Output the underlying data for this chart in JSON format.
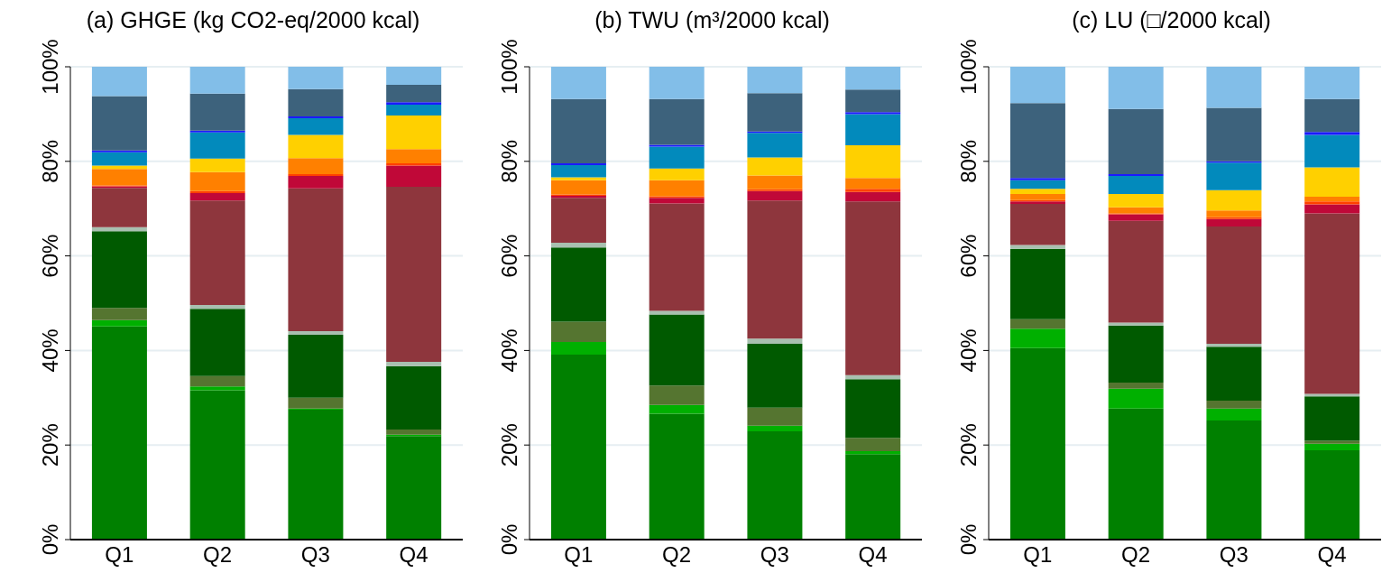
{
  "chart_data": [
    {
      "type": "bar",
      "title": "(a) GHGE (kg CO2-eq/2000 kcal)",
      "categories": [
        "Q1",
        "Q2",
        "Q3",
        "Q4"
      ],
      "stacked": true,
      "grid": "y",
      "ylim": [
        0,
        100
      ],
      "yticks": [
        {
          "value": 0,
          "label": "0%"
        },
        {
          "value": 20,
          "label": "20%"
        },
        {
          "value": 40,
          "label": "40%"
        },
        {
          "value": 60,
          "label": "60%"
        },
        {
          "value": 80,
          "label": "80%"
        },
        {
          "value": 100,
          "label": "100%"
        }
      ],
      "series": [
        {
          "color": "#008000",
          "values": [
            45.1,
            31.6,
            27.5,
            21.9
          ]
        },
        {
          "color": "#00b000",
          "values": [
            1.3,
            0.8,
            0.2,
            0.3
          ]
        },
        {
          "color": "#557530",
          "values": [
            2.6,
            2.2,
            2.3,
            1.1
          ]
        },
        {
          "color": "#005a00",
          "values": [
            16.2,
            14.2,
            13.3,
            13.4
          ]
        },
        {
          "color": "#a8c0b0",
          "values": [
            0.9,
            0.8,
            0.8,
            0.9
          ]
        },
        {
          "color": "#8e363d",
          "values": [
            8.3,
            22.1,
            30.2,
            37.0
          ]
        },
        {
          "color": "#c00838",
          "values": [
            0.3,
            1.6,
            2.6,
            4.5
          ]
        },
        {
          "color": "#ff4000",
          "values": [
            0.2,
            0.4,
            0.4,
            0.5
          ]
        },
        {
          "color": "#ff8000",
          "values": [
            3.5,
            4.0,
            3.4,
            3.0
          ]
        },
        {
          "color": "#ffd000",
          "values": [
            0.7,
            2.9,
            4.9,
            7.1
          ]
        },
        {
          "color": "#028abc",
          "values": [
            2.8,
            5.5,
            3.5,
            2.3
          ]
        },
        {
          "color": "#1a1aff",
          "values": [
            0.4,
            0.4,
            0.4,
            0.5
          ]
        },
        {
          "color": "#3d627c",
          "values": [
            11.5,
            7.8,
            5.8,
            3.7
          ]
        },
        {
          "color": "#82bee8",
          "values": [
            6.2,
            5.7,
            4.7,
            3.8
          ]
        }
      ]
    },
    {
      "type": "bar",
      "title": "(b) TWU (m³/2000 kcal)",
      "categories": [
        "Q1",
        "Q2",
        "Q3",
        "Q4"
      ],
      "stacked": true,
      "grid": "y",
      "ylim": [
        0,
        100
      ],
      "yticks": [
        {
          "value": 0,
          "label": "0%"
        },
        {
          "value": 20,
          "label": "20%"
        },
        {
          "value": 40,
          "label": "40%"
        },
        {
          "value": 60,
          "label": "60%"
        },
        {
          "value": 80,
          "label": "80%"
        },
        {
          "value": 100,
          "label": "100%"
        }
      ],
      "series": [
        {
          "color": "#008000",
          "values": [
            39.1,
            26.6,
            22.9,
            18.1
          ]
        },
        {
          "color": "#00b000",
          "values": [
            2.7,
            1.9,
            1.2,
            0.6
          ]
        },
        {
          "color": "#557530",
          "values": [
            4.3,
            4.1,
            3.8,
            2.8
          ]
        },
        {
          "color": "#005a00",
          "values": [
            15.7,
            15.0,
            13.5,
            12.4
          ]
        },
        {
          "color": "#a8c0b0",
          "values": [
            1.0,
            0.8,
            1.1,
            0.9
          ]
        },
        {
          "color": "#8e363d",
          "values": [
            9.5,
            22.7,
            29.2,
            36.7
          ]
        },
        {
          "color": "#c00838",
          "values": [
            0.4,
            1.2,
            2.0,
            2.0
          ]
        },
        {
          "color": "#ff4000",
          "values": [
            0.3,
            0.3,
            0.4,
            0.7
          ]
        },
        {
          "color": "#ff8000",
          "values": [
            3.0,
            3.4,
            2.9,
            2.3
          ]
        },
        {
          "color": "#ffd000",
          "values": [
            0.6,
            2.5,
            3.8,
            6.9
          ]
        },
        {
          "color": "#028abc",
          "values": [
            2.6,
            4.6,
            5.2,
            6.6
          ]
        },
        {
          "color": "#1a1aff",
          "values": [
            0.4,
            0.4,
            0.3,
            0.4
          ]
        },
        {
          "color": "#3d627c",
          "values": [
            13.6,
            9.7,
            8.1,
            4.8
          ]
        },
        {
          "color": "#82bee8",
          "values": [
            6.8,
            6.8,
            5.6,
            4.8
          ]
        }
      ]
    },
    {
      "type": "bar",
      "title": "(c) LU (□/2000 kcal)",
      "categories": [
        "Q1",
        "Q2",
        "Q3",
        "Q4"
      ],
      "stacked": true,
      "grid": "y",
      "ylim": [
        0,
        100
      ],
      "yticks": [
        {
          "value": 0,
          "label": "0%"
        },
        {
          "value": 20,
          "label": "20%"
        },
        {
          "value": 40,
          "label": "40%"
        },
        {
          "value": 60,
          "label": "60%"
        },
        {
          "value": 80,
          "label": "80%"
        },
        {
          "value": 100,
          "label": "100%"
        }
      ],
      "series": [
        {
          "color": "#008000",
          "values": [
            40.5,
            27.7,
            25.2,
            18.9
          ]
        },
        {
          "color": "#00b000",
          "values": [
            4.1,
            4.2,
            2.5,
            1.4
          ]
        },
        {
          "color": "#557530",
          "values": [
            2.0,
            1.3,
            1.7,
            0.6
          ]
        },
        {
          "color": "#005a00",
          "values": [
            14.9,
            12.1,
            11.4,
            9.4
          ]
        },
        {
          "color": "#a8c0b0",
          "values": [
            0.8,
            0.6,
            0.6,
            0.5
          ]
        },
        {
          "color": "#8e363d",
          "values": [
            8.7,
            21.5,
            24.8,
            38.2
          ]
        },
        {
          "color": "#c00838",
          "values": [
            0.5,
            1.4,
            1.6,
            1.9
          ]
        },
        {
          "color": "#ff4000",
          "values": [
            0.3,
            0.2,
            0.4,
            0.6
          ]
        },
        {
          "color": "#ff8000",
          "values": [
            1.3,
            1.3,
            1.4,
            1.0
          ]
        },
        {
          "color": "#ffd000",
          "values": [
            1.1,
            2.8,
            4.3,
            6.2
          ]
        },
        {
          "color": "#028abc",
          "values": [
            1.8,
            3.8,
            5.8,
            6.9
          ]
        },
        {
          "color": "#1a1aff",
          "values": [
            0.5,
            0.4,
            0.3,
            0.6
          ]
        },
        {
          "color": "#3d627c",
          "values": [
            15.8,
            13.8,
            11.3,
            7.0
          ]
        },
        {
          "color": "#82bee8",
          "values": [
            7.7,
            8.9,
            8.7,
            6.8
          ]
        }
      ]
    }
  ]
}
